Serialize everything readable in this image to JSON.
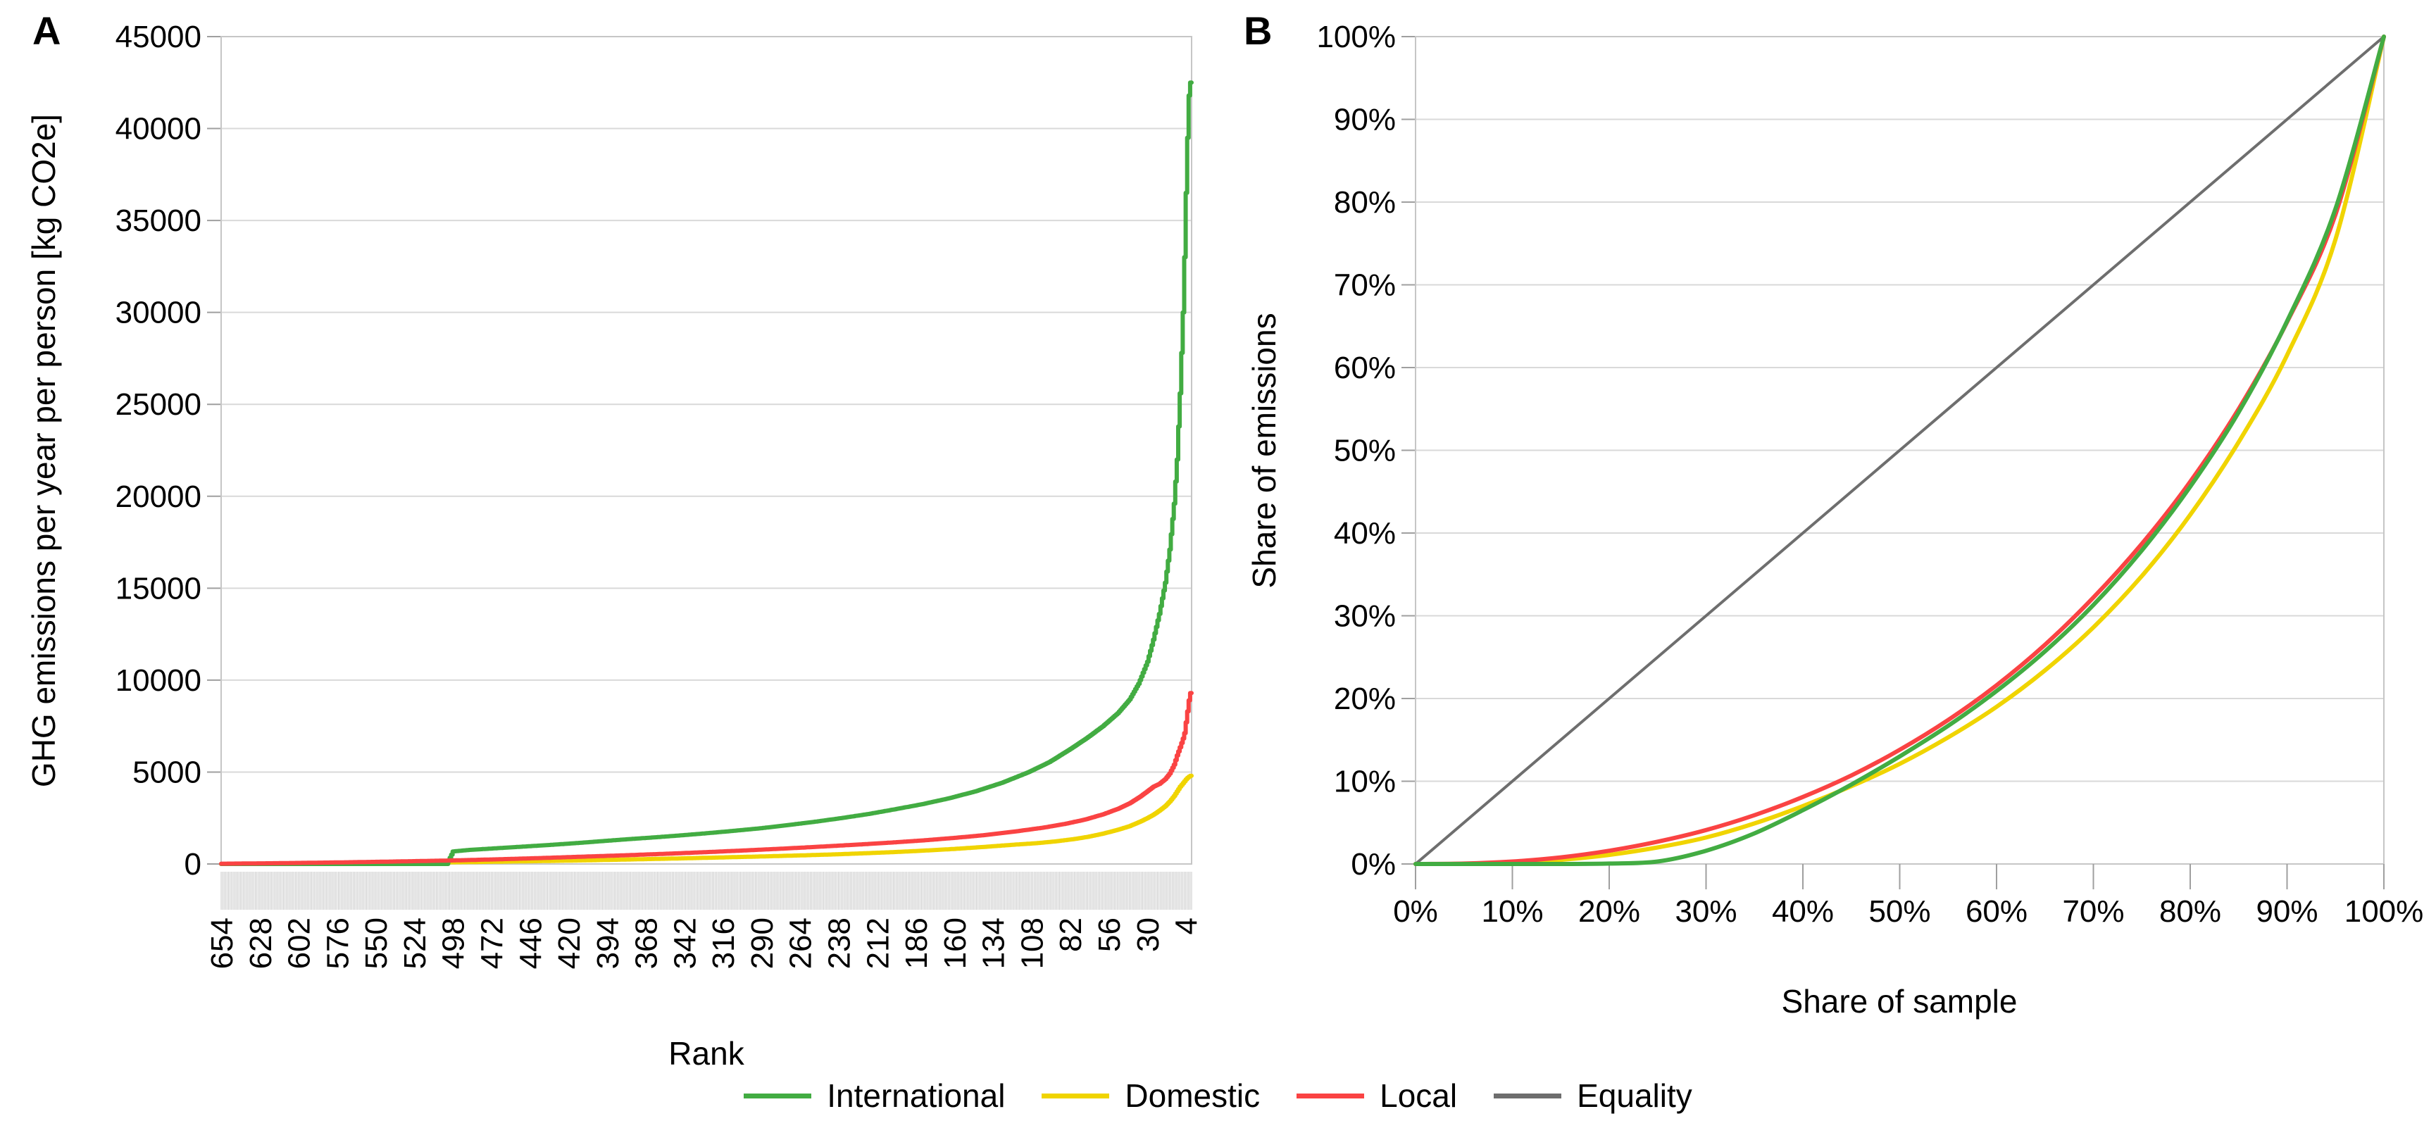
{
  "colors": {
    "international": "#42ac42",
    "domestic": "#f0d400",
    "local": "#fa4343",
    "equality": "#6e6e6e",
    "gridline": "#d9d9d9",
    "frame": "#c6c6c6",
    "tick": "#9f9f9f",
    "tick_band": "#c9c9c9",
    "text": "#000000"
  },
  "legend": {
    "items": [
      {
        "label": "International",
        "color_key": "international"
      },
      {
        "label": "Domestic",
        "color_key": "domestic"
      },
      {
        "label": "Local",
        "color_key": "local"
      },
      {
        "label": "Equality",
        "color_key": "equality"
      }
    ]
  },
  "chart_data": [
    {
      "id": "A",
      "type": "line",
      "panel_label": "A",
      "xlabel": "Rank",
      "ylabel": "GHG emissions per year per person [kg CO2e]",
      "render": "steps",
      "x_axis": {
        "reversed": true,
        "min": 1,
        "max": 654,
        "tick_labels": [
          "654",
          "628",
          "602",
          "576",
          "550",
          "524",
          "498",
          "472",
          "446",
          "420",
          "394",
          "368",
          "342",
          "316",
          "290",
          "264",
          "238",
          "212",
          "186",
          "160",
          "134",
          "108",
          "82",
          "56",
          "30",
          "4"
        ]
      },
      "y_axis": {
        "min": 0,
        "max": 45000,
        "tick_step": 5000,
        "tick_labels": [
          "0",
          "5000",
          "10000",
          "15000",
          "20000",
          "25000",
          "30000",
          "35000",
          "40000",
          "45000"
        ]
      },
      "series": [
        {
          "name": "Domestic",
          "color_key": "domestic",
          "points": [
            [
              654,
              0
            ],
            [
              610,
              10
            ],
            [
              570,
              30
            ],
            [
              530,
              60
            ],
            [
              490,
              100
            ],
            [
              450,
              145
            ],
            [
              410,
              195
            ],
            [
              380,
              245
            ],
            [
              350,
              295
            ],
            [
              320,
              350
            ],
            [
              290,
              410
            ],
            [
              260,
              475
            ],
            [
              240,
              525
            ],
            [
              220,
              585
            ],
            [
              200,
              650
            ],
            [
              180,
              730
            ],
            [
              160,
              820
            ],
            [
              140,
              930
            ],
            [
              120,
              1050
            ],
            [
              105,
              1130
            ],
            [
              92,
              1230
            ],
            [
              80,
              1350
            ],
            [
              70,
              1480
            ],
            [
              60,
              1650
            ],
            [
              50,
              1860
            ],
            [
              42,
              2060
            ],
            [
              35,
              2300
            ],
            [
              30,
              2500
            ],
            [
              26,
              2680
            ],
            [
              22,
              2900
            ],
            [
              18,
              3150
            ],
            [
              15,
              3400
            ],
            [
              12,
              3700
            ],
            [
              10,
              3950
            ],
            [
              8,
              4200
            ],
            [
              6,
              4400
            ],
            [
              5,
              4500
            ],
            [
              4,
              4600
            ],
            [
              3,
              4680
            ],
            [
              2,
              4750
            ],
            [
              1,
              4800
            ]
          ]
        },
        {
          "name": "International",
          "color_key": "international",
          "points": [
            [
              654,
              0
            ],
            [
              502,
              0
            ],
            [
              498,
              680
            ],
            [
              488,
              760
            ],
            [
              470,
              850
            ],
            [
              452,
              940
            ],
            [
              434,
              1030
            ],
            [
              416,
              1130
            ],
            [
              398,
              1240
            ],
            [
              380,
              1350
            ],
            [
              362,
              1450
            ],
            [
              344,
              1560
            ],
            [
              326,
              1680
            ],
            [
              308,
              1810
            ],
            [
              290,
              1950
            ],
            [
              272,
              2120
            ],
            [
              254,
              2300
            ],
            [
              236,
              2500
            ],
            [
              218,
              2720
            ],
            [
              200,
              2980
            ],
            [
              182,
              3250
            ],
            [
              164,
              3570
            ],
            [
              146,
              3950
            ],
            [
              128,
              4420
            ],
            [
              110,
              5000
            ],
            [
              96,
              5550
            ],
            [
              82,
              6250
            ],
            [
              70,
              6900
            ],
            [
              60,
              7500
            ],
            [
              50,
              8200
            ],
            [
              42,
              8950
            ],
            [
              36,
              9800
            ],
            [
              30,
              11000
            ],
            [
              26,
              12200
            ],
            [
              22,
              13600
            ],
            [
              18,
              15300
            ],
            [
              15,
              17100
            ],
            [
              12,
              19600
            ],
            [
              10,
              22000
            ],
            [
              8,
              25600
            ],
            [
              6,
              30000
            ],
            [
              5,
              33000
            ],
            [
              4,
              36500
            ],
            [
              3,
              39500
            ],
            [
              2,
              41800
            ],
            [
              1,
              42500
            ]
          ]
        },
        {
          "name": "Local",
          "color_key": "local",
          "points": [
            [
              654,
              15
            ],
            [
              620,
              40
            ],
            [
              580,
              80
            ],
            [
              540,
              130
            ],
            [
              500,
              190
            ],
            [
              470,
              250
            ],
            [
              440,
              320
            ],
            [
              410,
              400
            ],
            [
              380,
              480
            ],
            [
              350,
              570
            ],
            [
              320,
              670
            ],
            [
              290,
              780
            ],
            [
              265,
              880
            ],
            [
              240,
              990
            ],
            [
              220,
              1080
            ],
            [
              200,
              1180
            ],
            [
              180,
              1290
            ],
            [
              160,
              1420
            ],
            [
              140,
              1570
            ],
            [
              120,
              1760
            ],
            [
              100,
              1980
            ],
            [
              85,
              2190
            ],
            [
              72,
              2420
            ],
            [
              60,
              2700
            ],
            [
              50,
              3000
            ],
            [
              42,
              3300
            ],
            [
              35,
              3660
            ],
            [
              30,
              3960
            ],
            [
              26,
              4200
            ],
            [
              22,
              4360
            ],
            [
              18,
              4620
            ],
            [
              15,
              4920
            ],
            [
              12,
              5400
            ],
            [
              10,
              5900
            ],
            [
              8,
              6350
            ],
            [
              6,
              6820
            ],
            [
              5,
              7120
            ],
            [
              4,
              7700
            ],
            [
              3,
              8300
            ],
            [
              2,
              8900
            ],
            [
              1,
              9300
            ]
          ]
        }
      ]
    },
    {
      "id": "B",
      "type": "line",
      "panel_label": "B",
      "xlabel": "Share of sample",
      "ylabel": "Share of emissions",
      "render": "smooth",
      "x_axis": {
        "min": 0,
        "max": 100,
        "tick_labels": [
          "0%",
          "10%",
          "20%",
          "30%",
          "40%",
          "50%",
          "60%",
          "70%",
          "80%",
          "90%",
          "100%"
        ]
      },
      "y_axis": {
        "min": 0,
        "max": 100,
        "tick_step": 10,
        "tick_labels": [
          "0%",
          "10%",
          "20%",
          "30%",
          "40%",
          "50%",
          "60%",
          "70%",
          "80%",
          "90%",
          "100%"
        ]
      },
      "series": [
        {
          "name": "Equality",
          "color_key": "equality",
          "points": [
            [
              0,
              0
            ],
            [
              100,
              100
            ]
          ]
        },
        {
          "name": "Domestic",
          "color_key": "domestic",
          "points": [
            [
              0,
              0
            ],
            [
              5,
              0.02
            ],
            [
              10,
              0.15
            ],
            [
              15,
              0.5
            ],
            [
              20,
              1.1
            ],
            [
              25,
              2.0
            ],
            [
              30,
              3.2
            ],
            [
              35,
              4.9
            ],
            [
              40,
              7.0
            ],
            [
              45,
              9.4
            ],
            [
              50,
              12.1
            ],
            [
              55,
              15.3
            ],
            [
              60,
              19.0
            ],
            [
              65,
              23.4
            ],
            [
              70,
              28.6
            ],
            [
              75,
              34.8
            ],
            [
              80,
              42.2
            ],
            [
              85,
              51.0
            ],
            [
              90,
              61.5
            ],
            [
              95,
              75.5
            ],
            [
              100,
              100
            ]
          ]
        },
        {
          "name": "Local",
          "color_key": "local",
          "points": [
            [
              0,
              0
            ],
            [
              5,
              0.05
            ],
            [
              10,
              0.3
            ],
            [
              15,
              0.8
            ],
            [
              20,
              1.6
            ],
            [
              25,
              2.7
            ],
            [
              30,
              4.1
            ],
            [
              35,
              5.9
            ],
            [
              40,
              8.1
            ],
            [
              45,
              10.7
            ],
            [
              50,
              13.8
            ],
            [
              55,
              17.4
            ],
            [
              60,
              21.6
            ],
            [
              65,
              26.5
            ],
            [
              70,
              32.2
            ],
            [
              75,
              38.7
            ],
            [
              80,
              46.2
            ],
            [
              85,
              55.0
            ],
            [
              90,
              65.5
            ],
            [
              95,
              78.5
            ],
            [
              100,
              100
            ]
          ]
        },
        {
          "name": "International",
          "color_key": "international",
          "points": [
            [
              0,
              0
            ],
            [
              5,
              0
            ],
            [
              10,
              0
            ],
            [
              15,
              0
            ],
            [
              20,
              0.05
            ],
            [
              25,
              0.3
            ],
            [
              30,
              1.6
            ],
            [
              35,
              3.7
            ],
            [
              40,
              6.5
            ],
            [
              45,
              9.6
            ],
            [
              50,
              13.0
            ],
            [
              55,
              16.7
            ],
            [
              60,
              20.9
            ],
            [
              65,
              25.7
            ],
            [
              70,
              31.3
            ],
            [
              75,
              37.9
            ],
            [
              80,
              45.6
            ],
            [
              85,
              54.6
            ],
            [
              90,
              65.6
            ],
            [
              95,
              79.2
            ],
            [
              100,
              100
            ]
          ]
        }
      ]
    }
  ]
}
